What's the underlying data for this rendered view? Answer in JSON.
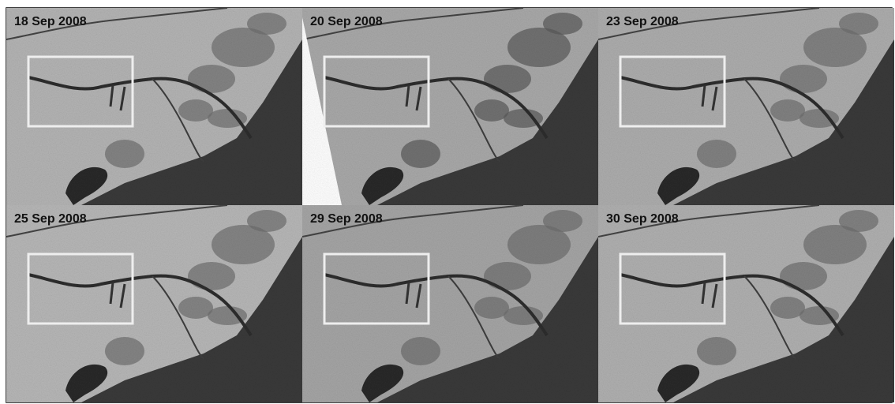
{
  "panels": [
    {
      "label": "18 Sep 2008"
    },
    {
      "label": "20 Sep 2008"
    },
    {
      "label": "23 Sep 2008"
    },
    {
      "label": "25 Sep 2008"
    },
    {
      "label": "29 Sep 2008"
    },
    {
      "label": "30 Sep 2008"
    }
  ]
}
